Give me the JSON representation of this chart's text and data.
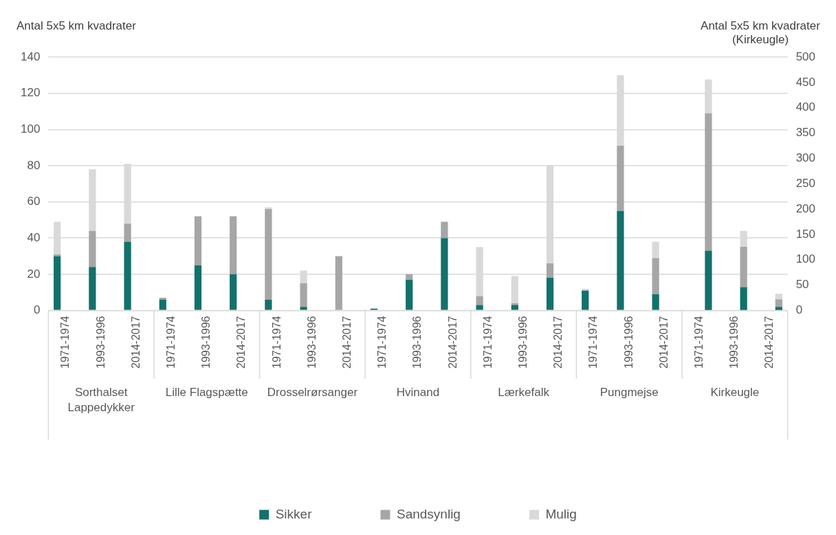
{
  "chart_data": {
    "type": "bar",
    "stacked": true,
    "ylabel": "Antal 5x5 km kvadrater",
    "y2label": "Antal 5x5 km kvadrater (Kirkeugle)",
    "categories": [
      "1971-1974",
      "1993-1996",
      "2014-2017",
      "1971-1974",
      "1993-1996",
      "2014-2017",
      "1971-1974",
      "1993-1996",
      "2014-2017",
      "1971-1974",
      "1993-1996",
      "2014-2017",
      "1971-1974",
      "1993-1996",
      "2014-2017",
      "1971-1974",
      "1993-1996",
      "2014-2017",
      "1971-1974",
      "1993-1996",
      "2014-2017"
    ],
    "annotations": [
      "Sorthalset Lappedykker",
      "Lille Flagspætte",
      "Drosselrørsanger",
      "Hvinand",
      "Lærkefalk",
      "Pungmejse",
      "Kirkeugle"
    ],
    "series": [
      {
        "name": "Sikker",
        "color": "#13716b",
        "values": [
          30,
          24,
          38,
          6,
          25,
          20,
          6,
          2,
          0,
          1,
          17,
          40,
          3,
          3,
          18,
          11,
          55,
          9,
          null,
          null,
          null
        ]
      },
      {
        "name": "Sandsynlig",
        "color": "#a6a6a6",
        "values": [
          1,
          20,
          10,
          1,
          27,
          32,
          50,
          13,
          30,
          0,
          3,
          9,
          5,
          1,
          8,
          0,
          36,
          20,
          null,
          null,
          null
        ]
      },
      {
        "name": "Mulig",
        "color": "#d9d9d9",
        "values": [
          18,
          34,
          33,
          0,
          0,
          0,
          1,
          7,
          0,
          0,
          0,
          0,
          27,
          15,
          54,
          1,
          39,
          9,
          null,
          null,
          null
        ]
      },
      {
        "color": "#13716b",
        "axis": "y2",
        "values": [
          null,
          null,
          null,
          null,
          null,
          null,
          null,
          null,
          null,
          null,
          null,
          null,
          null,
          null,
          null,
          null,
          null,
          null,
          118,
          46,
          7
        ]
      },
      {
        "color": "#a6a6a6",
        "axis": "y2",
        "values": [
          null,
          null,
          null,
          null,
          null,
          null,
          null,
          null,
          null,
          null,
          null,
          null,
          null,
          null,
          null,
          null,
          null,
          null,
          271,
          80,
          15
        ]
      },
      {
        "color": "#d9d9d9",
        "axis": "y2",
        "values": [
          null,
          null,
          null,
          null,
          null,
          null,
          null,
          null,
          null,
          null,
          null,
          null,
          null,
          null,
          null,
          null,
          null,
          null,
          67,
          31,
          11
        ]
      }
    ],
    "ylim": [
      0,
      140
    ],
    "yticks": [
      0,
      20,
      40,
      60,
      80,
      100,
      120,
      140
    ],
    "y2lim": [
      0,
      500
    ],
    "y2ticks": [
      0,
      50,
      100,
      150,
      200,
      250,
      300,
      350,
      400,
      450,
      500
    ],
    "grid": "y",
    "legend": "bottom"
  }
}
